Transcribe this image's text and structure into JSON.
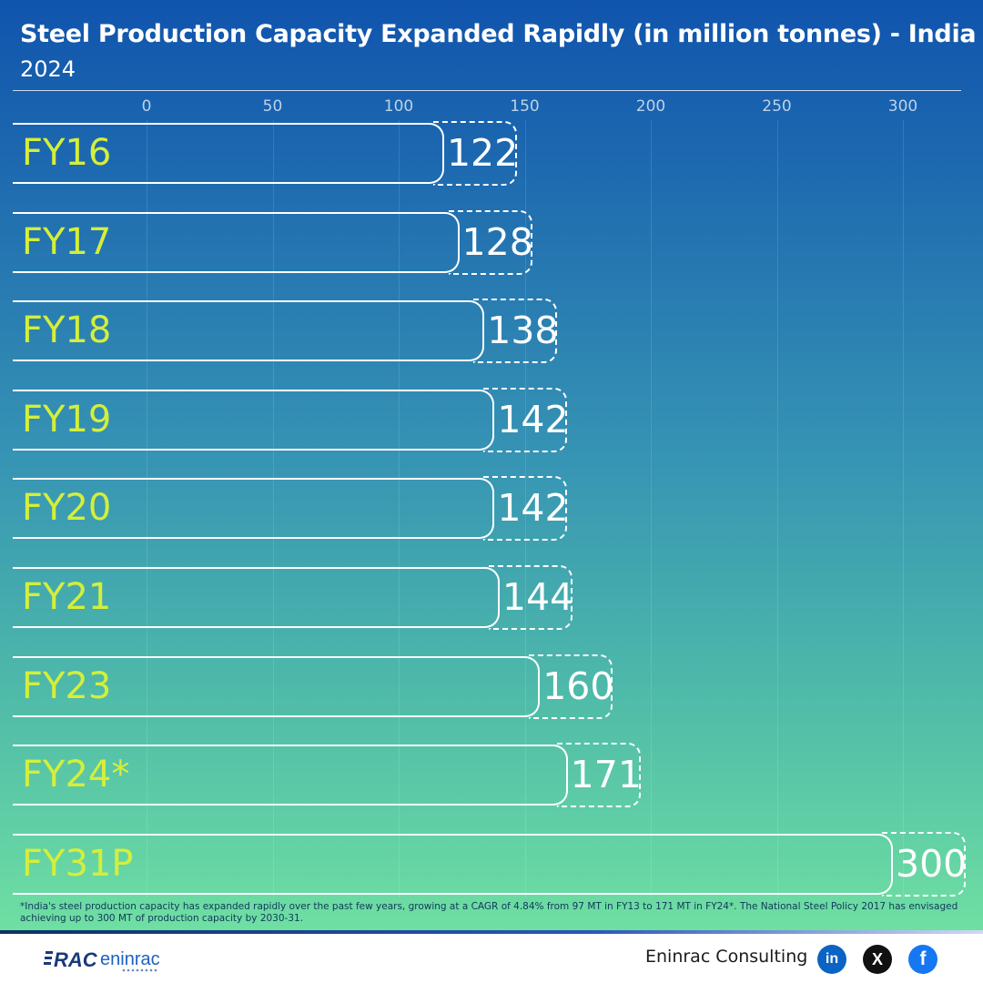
{
  "header": {
    "title": "Steel Production Capacity Expanded Rapidly (in million tonnes) - India",
    "subtitle": "2024"
  },
  "chart_data": {
    "type": "bar",
    "orientation": "horizontal",
    "title": "Steel Production Capacity Expanded Rapidly (in million tonnes) - India",
    "subtitle": "2024",
    "categories": [
      "FY16",
      "FY17",
      "FY18",
      "FY19",
      "FY20",
      "FY21",
      "FY23",
      "FY24*",
      "FY31P"
    ],
    "values": [
      122,
      128,
      138,
      142,
      142,
      144,
      160,
      171,
      300
    ],
    "value_labels": [
      "122",
      "128",
      "138",
      "142",
      "142",
      "144",
      "160",
      "171",
      "300"
    ],
    "xticks": [
      "0",
      "50",
      "100",
      "150",
      "200",
      "250",
      "300"
    ],
    "xlim": [
      0,
      320
    ],
    "grid": true,
    "colors": {
      "category_label": "#d4ef3a",
      "bar_outline": "#ffffff",
      "value_label": "#ffffff"
    }
  },
  "footnote": "*India's steel production capacity has expanded rapidly over the past few years, growing at a CAGR of 4.84% from 97 MT in FY13 to 171 MT in FY24*. The National Steel Policy 2017 has envisaged achieving up to 300 MT of production capacity by 2030-31.",
  "footer": {
    "logo_text": "eninrac",
    "logo_mark": "RAC",
    "brand": "Eninrac Consulting",
    "social": [
      {
        "name": "linkedin-icon",
        "glyph": "in"
      },
      {
        "name": "x-icon",
        "glyph": "X"
      },
      {
        "name": "facebook-icon",
        "glyph": "f"
      }
    ]
  }
}
